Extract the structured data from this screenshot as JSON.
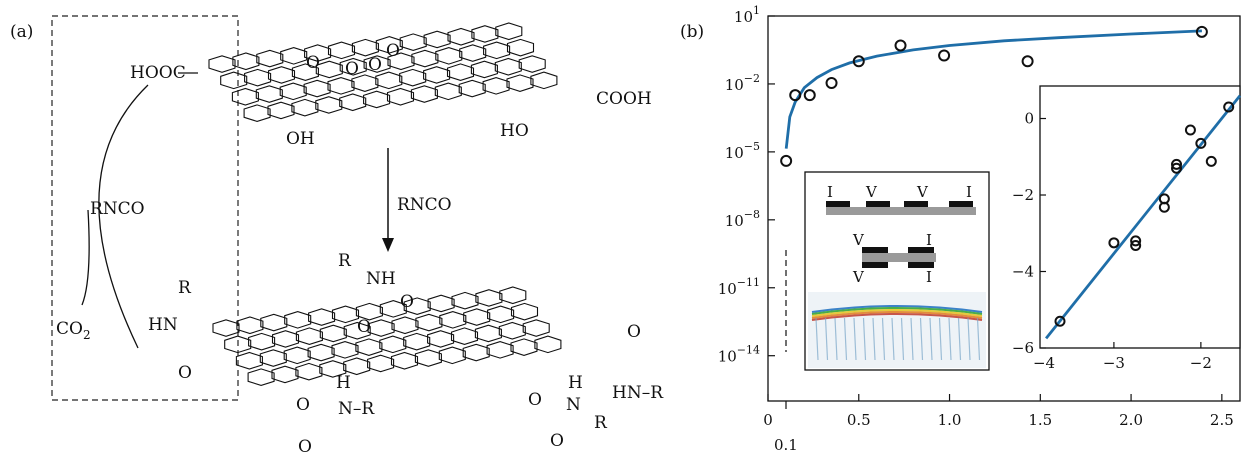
{
  "panel_a": {
    "label": "(a)",
    "groups": {
      "hooc": "HOOC",
      "cooh": "COOH",
      "oh": "OH",
      "ho": "HO",
      "oxygen": "O",
      "rnco_arrow": "RNCO",
      "rnco_side": "RNCO",
      "co2": "CO",
      "co2_sub": "2",
      "r": "R",
      "nh": "NH",
      "hn": "HN",
      "n": "N",
      "h": "H",
      "hn_r": "HN–R",
      "n_r": "N–R"
    }
  },
  "panel_b": {
    "label": "(b)",
    "x_extra_tick": "0.1",
    "inset_schematic": {
      "top_labels": [
        "I",
        "V",
        "V",
        "I"
      ],
      "bottom_labels": [
        "V",
        "I",
        "V",
        "I"
      ]
    }
  },
  "chart_data": [
    {
      "type": "scatter",
      "title": "",
      "xlabel": "",
      "ylabel": "",
      "xlim": [
        0,
        2.6
      ],
      "ylim": [
        1e-16,
        10
      ],
      "yscale": "log",
      "x_ticks": [
        0,
        0.5,
        1.0,
        1.5,
        2.0,
        2.5
      ],
      "x_tick_labels": [
        "0",
        "0.5",
        "1.0",
        "1.5",
        "2.0",
        "2.5"
      ],
      "y_tick_labels": [
        "10^1",
        "10^-2",
        "10^-5",
        "10^-8",
        "10^-11",
        "10^-14"
      ],
      "series": [
        {
          "kind": "points",
          "x": [
            0.1,
            0.15,
            0.23,
            0.35,
            0.5,
            0.73,
            0.97,
            1.43,
            2.39
          ],
          "y": [
            4e-06,
            0.0032,
            0.0032,
            0.011,
            0.1,
            0.5,
            0.18,
            0.1,
            2.0
          ]
        },
        {
          "kind": "fit-line",
          "color": "#1f6ea8",
          "x": [
            0.1,
            0.12,
            0.15,
            0.2,
            0.27,
            0.35,
            0.45,
            0.6,
            0.8,
            1.0,
            1.3,
            1.6,
            2.0,
            2.39
          ],
          "y": [
            1.4e-05,
            0.00035,
            0.0016,
            0.0068,
            0.019,
            0.043,
            0.085,
            0.17,
            0.32,
            0.5,
            0.8,
            1.1,
            1.6,
            2.2
          ]
        }
      ],
      "grid": false
    },
    {
      "type": "scatter",
      "title": "",
      "xlabel": "",
      "ylabel": "",
      "xlim": [
        -3.85,
        -1.55
      ],
      "ylim": [
        -6,
        0.85
      ],
      "x_ticks": [
        -3,
        -2
      ],
      "x_tick_labels": [
        "−3",
        "−2"
      ],
      "x_edge_label": "−4",
      "y_ticks": [
        0,
        -2,
        -4,
        -6
      ],
      "y_tick_labels": [
        "0",
        "−2",
        "−4",
        "−6"
      ],
      "series": [
        {
          "kind": "points",
          "x": [
            -3.62,
            -3.0,
            -2.75,
            -2.75,
            -2.42,
            -2.42,
            -2.28,
            -2.28,
            -2.12,
            -2.0,
            -1.88,
            -1.68
          ],
          "y": [
            -5.3,
            -3.25,
            -3.2,
            -3.32,
            -2.1,
            -2.32,
            -1.2,
            -1.3,
            -0.3,
            -0.65,
            -1.12,
            0.3
          ]
        },
        {
          "kind": "fit-line",
          "color": "#1f6ea8",
          "x": [
            -3.78,
            -1.55
          ],
          "y": [
            -5.75,
            0.6
          ]
        }
      ],
      "grid": false
    }
  ]
}
